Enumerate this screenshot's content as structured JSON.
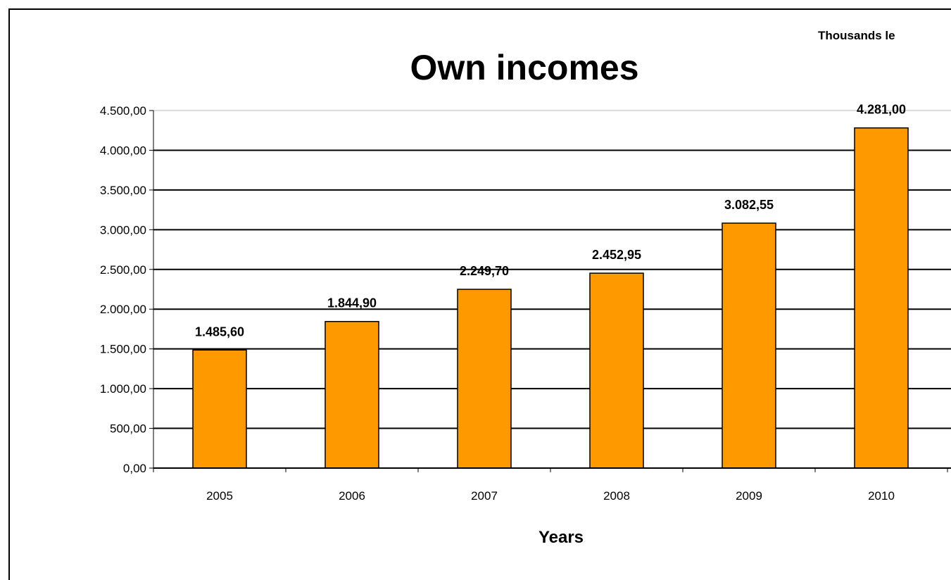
{
  "chart_data": {
    "type": "bar",
    "title": "Own incomes",
    "unit_label": "Thousands le",
    "xlabel": "Years",
    "ylabel": "",
    "categories": [
      "2005",
      "2006",
      "2007",
      "2008",
      "2009",
      "2010"
    ],
    "values": [
      1485.6,
      1844.9,
      2249.7,
      2452.95,
      3082.55,
      4281.0
    ],
    "value_labels": [
      "1.485,60",
      "1.844,90",
      "2.249,70",
      "2.452,95",
      "3.082,55",
      "4.281,00"
    ],
    "ylim": [
      0,
      4500
    ],
    "y_ticks": [
      {
        "value": 0,
        "label": "0,00"
      },
      {
        "value": 500,
        "label": "500,00"
      },
      {
        "value": 1000,
        "label": "1.000,00"
      },
      {
        "value": 1500,
        "label": "1.500,00"
      },
      {
        "value": 2000,
        "label": "2.000,00"
      },
      {
        "value": 2500,
        "label": "2.500,00"
      },
      {
        "value": 3000,
        "label": "3.000,00"
      },
      {
        "value": 3500,
        "label": "3.500,00"
      },
      {
        "value": 4000,
        "label": "4.000,00"
      },
      {
        "value": 4500,
        "label": "4.500,00"
      }
    ],
    "grid": true,
    "legend": "none",
    "colors": {
      "bar_fill": "#FF9900",
      "bar_stroke": "#000000",
      "grid": "#000000",
      "axis": "#000000"
    }
  }
}
